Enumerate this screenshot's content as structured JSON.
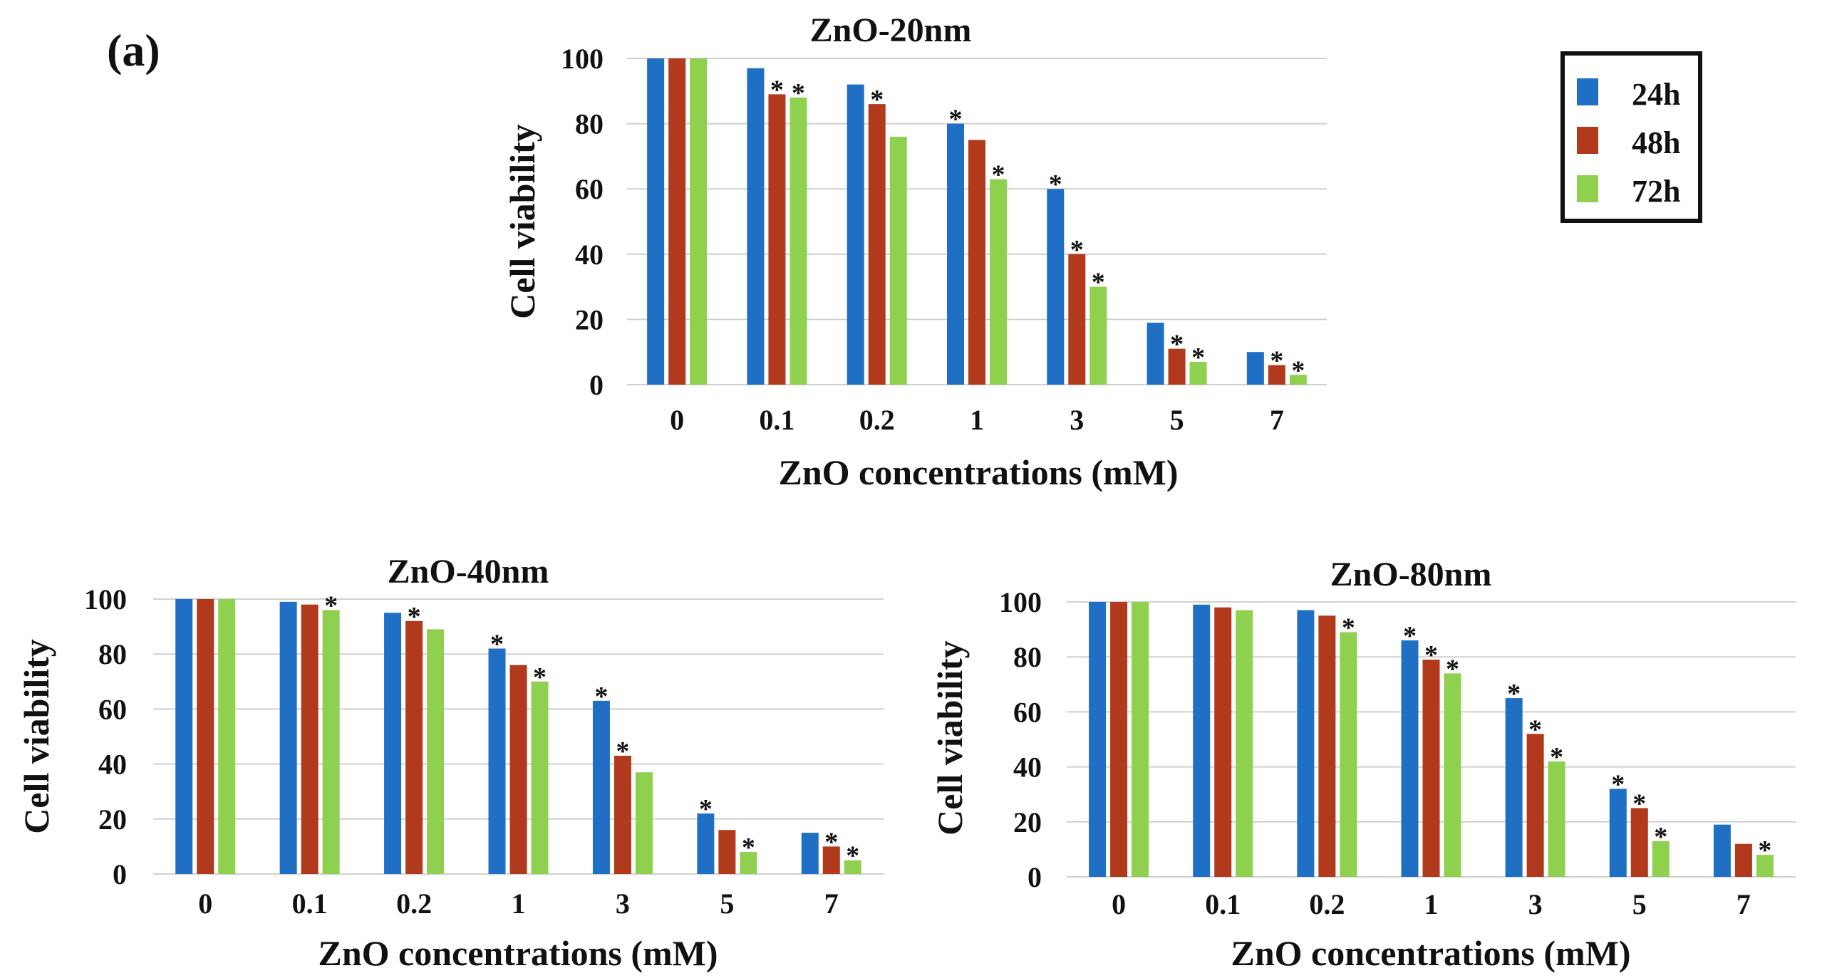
{
  "panel_label": "(a)",
  "colors": {
    "24h": "#1f6fc5",
    "48h": "#b23a1c",
    "72h": "#8fd14f"
  },
  "legend": {
    "items": [
      "24h",
      "48h",
      "72h"
    ]
  },
  "chart_data": [
    {
      "type": "bar",
      "title": "ZnO-20nm",
      "xlabel": "ZnO concentrations (mM)",
      "ylabel": "Cell viability",
      "ylim": [
        0,
        100
      ],
      "yticks": [
        "0",
        "20",
        "40",
        "60",
        "80",
        "100"
      ],
      "categories": [
        "0",
        "0.1",
        "0.2",
        "1",
        "3",
        "5",
        "7"
      ],
      "series": [
        {
          "name": "24h",
          "values": [
            100,
            97,
            92,
            80,
            60,
            19,
            10
          ],
          "significant": [
            false,
            false,
            false,
            true,
            true,
            false,
            false
          ]
        },
        {
          "name": "48h",
          "values": [
            100,
            89,
            86,
            75,
            40,
            11,
            6
          ],
          "significant": [
            false,
            true,
            true,
            false,
            true,
            true,
            true
          ]
        },
        {
          "name": "72h",
          "values": [
            100,
            88,
            76,
            63,
            30,
            7,
            3
          ],
          "significant": [
            false,
            true,
            false,
            true,
            true,
            true,
            true
          ]
        }
      ]
    },
    {
      "type": "bar",
      "title": "ZnO-40nm",
      "xlabel": "ZnO concentrations (mM)",
      "ylabel": "Cell viability",
      "ylim": [
        0,
        100
      ],
      "yticks": [
        "0",
        "20",
        "40",
        "60",
        "80",
        "100"
      ],
      "categories": [
        "0",
        "0.1",
        "0.2",
        "1",
        "3",
        "5",
        "7"
      ],
      "series": [
        {
          "name": "24h",
          "values": [
            100,
            99,
            95,
            82,
            63,
            22,
            15
          ],
          "significant": [
            false,
            false,
            false,
            true,
            true,
            true,
            false
          ]
        },
        {
          "name": "48h",
          "values": [
            100,
            98,
            92,
            76,
            43,
            16,
            10
          ],
          "significant": [
            false,
            false,
            true,
            false,
            true,
            false,
            true
          ]
        },
        {
          "name": "72h",
          "values": [
            100,
            96,
            89,
            70,
            37,
            8,
            5
          ],
          "significant": [
            false,
            true,
            false,
            true,
            false,
            true,
            true
          ]
        }
      ]
    },
    {
      "type": "bar",
      "title": "ZnO-80nm",
      "xlabel": "ZnO concentrations (mM)",
      "ylabel": "Cell viability",
      "ylim": [
        0,
        100
      ],
      "yticks": [
        "0",
        "20",
        "40",
        "60",
        "80",
        "100"
      ],
      "categories": [
        "0",
        "0.1",
        "0.2",
        "1",
        "3",
        "5",
        "7"
      ],
      "series": [
        {
          "name": "24h",
          "values": [
            100,
            99,
            97,
            86,
            65,
            32,
            19
          ],
          "significant": [
            false,
            false,
            false,
            true,
            true,
            true,
            false
          ]
        },
        {
          "name": "48h",
          "values": [
            100,
            98,
            95,
            79,
            52,
            25,
            12
          ],
          "significant": [
            false,
            false,
            false,
            true,
            true,
            true,
            false
          ]
        },
        {
          "name": "72h",
          "values": [
            100,
            97,
            89,
            74,
            42,
            13,
            8
          ],
          "significant": [
            false,
            false,
            true,
            true,
            true,
            true,
            true
          ]
        }
      ]
    }
  ]
}
